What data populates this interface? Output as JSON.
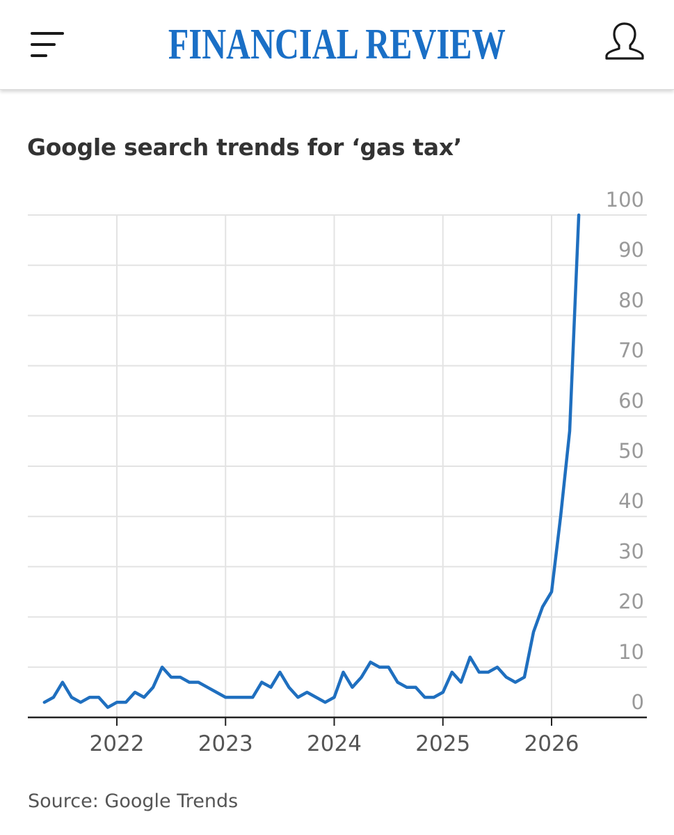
{
  "header": {
    "brand": "FINANCIAL REVIEW",
    "menu_icon": "hamburger-menu-icon",
    "account_icon": "user-account-icon",
    "brand_color": "#1a6fc6"
  },
  "source_text": "Source: Google Trends",
  "colors": {
    "line": "#1f6fbf",
    "grid": "#e3e3e3",
    "axis": "#222222",
    "tick_label": "#999999",
    "x_label": "#555555"
  },
  "chart_data": {
    "type": "line",
    "title": "Google search trends for ‘gas tax’",
    "xlabel": "",
    "ylabel": "",
    "x_ticks": [
      "2022",
      "2023",
      "2024",
      "2025",
      "2026"
    ],
    "y_ticks": [
      0,
      10,
      20,
      30,
      40,
      50,
      60,
      70,
      80,
      90,
      100
    ],
    "ylim": [
      0,
      100
    ],
    "xlim": [
      "2021-01",
      "2026-09"
    ],
    "grid": true,
    "y_axis_side": "right",
    "legend": "none",
    "series": [
      {
        "x": [
          "2021-05",
          "2021-06",
          "2021-07",
          "2021-08",
          "2021-09",
          "2021-10",
          "2021-11",
          "2021-12",
          "2022-01",
          "2022-02",
          "2022-03",
          "2022-04",
          "2022-05",
          "2022-06",
          "2022-07",
          "2022-08",
          "2022-09",
          "2022-10",
          "2022-11",
          "2022-12",
          "2023-01",
          "2023-02",
          "2023-03",
          "2023-04",
          "2023-05",
          "2023-06",
          "2023-07",
          "2023-08",
          "2023-09",
          "2023-10",
          "2023-11",
          "2023-12",
          "2024-01",
          "2024-02",
          "2024-03",
          "2024-04",
          "2024-05",
          "2024-06",
          "2024-07",
          "2024-08",
          "2024-09",
          "2024-10",
          "2024-11",
          "2024-12",
          "2025-01",
          "2025-02",
          "2025-03",
          "2025-04",
          "2025-05",
          "2025-06",
          "2025-07",
          "2025-08",
          "2025-09",
          "2025-10",
          "2025-11",
          "2025-12",
          "2026-01",
          "2026-02",
          "2026-03",
          "2026-04"
        ],
        "values": [
          3,
          4,
          7,
          4,
          3,
          4,
          4,
          2,
          3,
          3,
          5,
          4,
          6,
          10,
          8,
          8,
          7,
          7,
          6,
          5,
          4,
          4,
          4,
          4,
          7,
          6,
          9,
          6,
          4,
          5,
          4,
          3,
          4,
          9,
          6,
          8,
          11,
          10,
          10,
          7,
          6,
          6,
          4,
          4,
          5,
          9,
          7,
          12,
          9,
          9,
          10,
          8,
          7,
          8,
          17,
          22,
          25,
          40,
          57,
          100
        ]
      }
    ]
  }
}
